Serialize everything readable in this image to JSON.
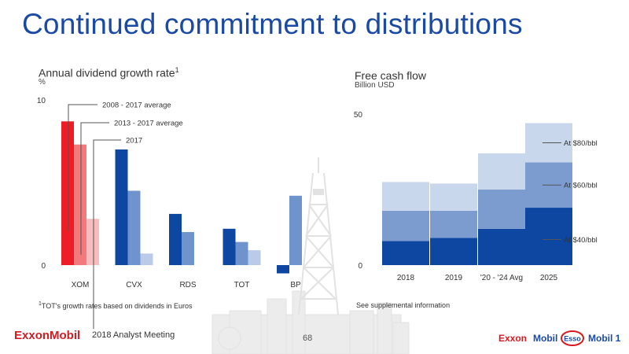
{
  "slide": {
    "title": "Continued commitment to distributions",
    "footer_meeting": "2018 Analyst Meeting",
    "page_number": "68",
    "logo_text": "ExxonMobil",
    "brand_logos": [
      "Exxon",
      "Mobil",
      "Esso",
      "Mobil 1"
    ]
  },
  "colors": {
    "title_blue": "#1a4aa3",
    "xom_2008": "#ee1c25",
    "xom_2013": "#f27a7c",
    "xom_2017": "#f7bcbc",
    "peer_2008": "#0d47a1",
    "peer_2013": "#6f93cc",
    "peer_2017": "#b9cbe8",
    "fcf_40": "#0d47a1",
    "fcf_60": "#7c9ccf",
    "fcf_80": "#c9d7ec"
  },
  "chart_data": [
    {
      "type": "bar",
      "title": "Annual dividend growth rate",
      "title_footnote": "1",
      "unit": "%",
      "categories": [
        "XOM",
        "CVX",
        "RDS",
        "TOT",
        "BP"
      ],
      "series": [
        {
          "name": "2008 - 2017 average",
          "values": [
            8.7,
            7.0,
            3.1,
            2.2,
            -0.5
          ]
        },
        {
          "name": "2013 - 2017 average",
          "values": [
            7.3,
            4.5,
            2.0,
            1.4,
            4.2
          ]
        },
        {
          "name": "2017",
          "values": [
            2.8,
            0.7,
            0,
            0.9,
            0
          ]
        }
      ],
      "ylim": [
        -0.6,
        10
      ],
      "yticks": [
        0,
        10
      ],
      "footnote_marker": "1",
      "footnote": "TOT's growth rates based on dividends in Euros"
    },
    {
      "type": "bar",
      "stacked": true,
      "title": "Free cash flow",
      "unit": "Billion USD",
      "categories": [
        "2018",
        "2019",
        "'20 - '24 Avg",
        "2025"
      ],
      "series": [
        {
          "name": "At $40/bbl",
          "values": [
            8,
            9,
            12,
            19
          ]
        },
        {
          "name": "At $60/bbl",
          "values": [
            10,
            9,
            13,
            15
          ]
        },
        {
          "name": "At $80/bbl",
          "values": [
            9.5,
            9,
            12,
            13
          ]
        }
      ],
      "ylim": [
        0,
        50
      ],
      "yticks": [
        0,
        50
      ],
      "footnote": "See supplemental information"
    }
  ]
}
